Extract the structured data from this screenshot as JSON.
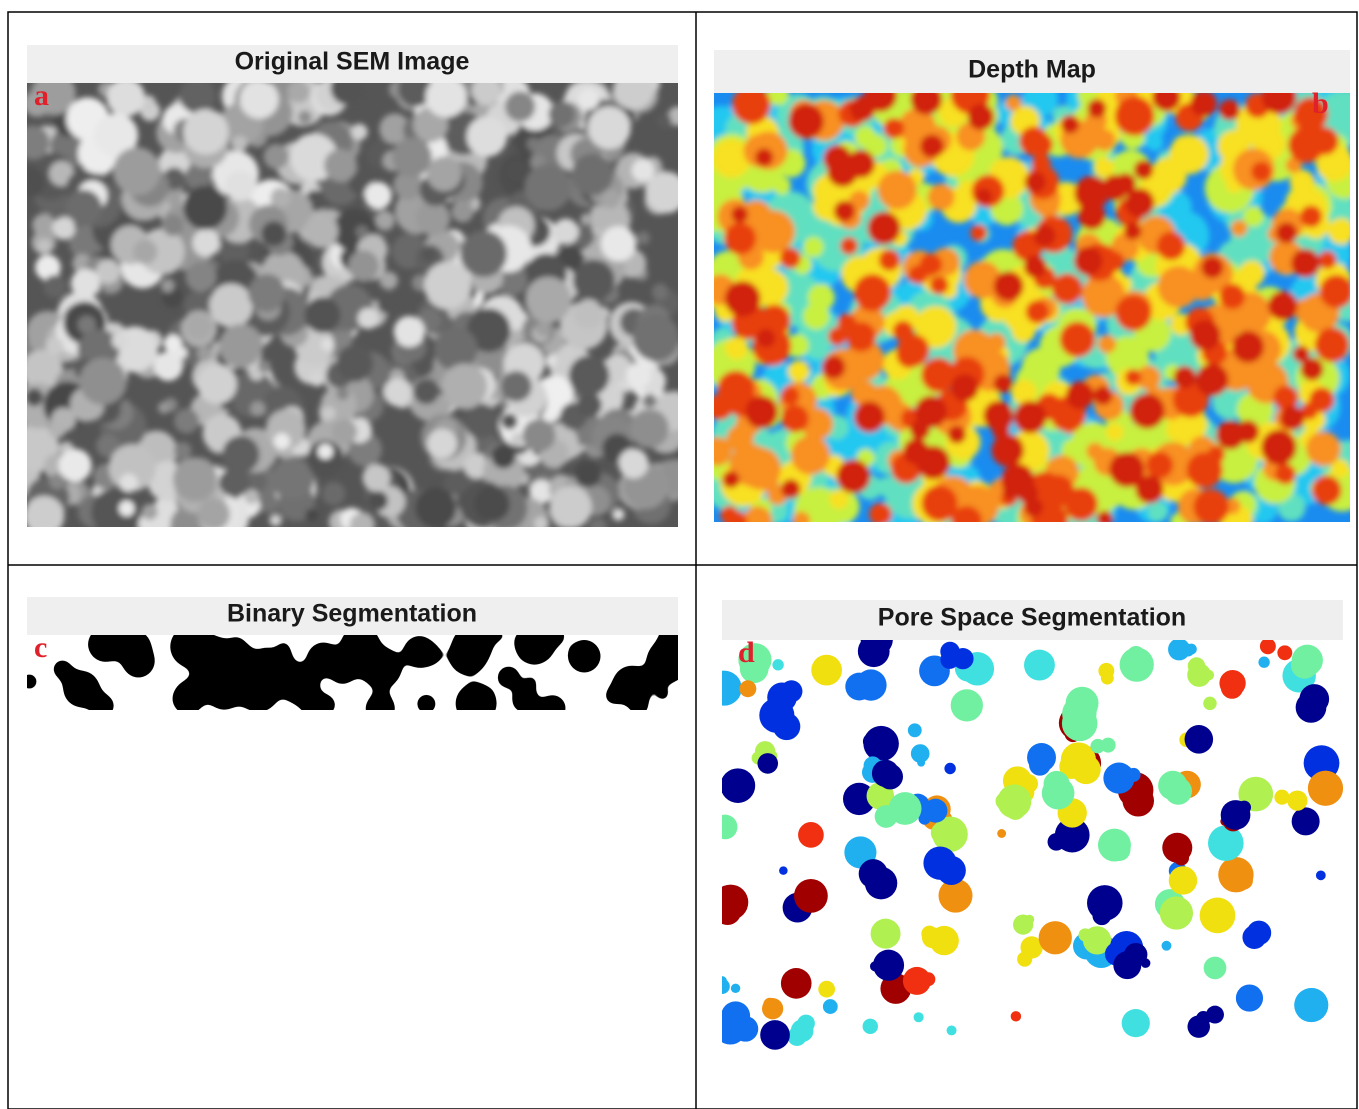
{
  "panels": [
    {
      "title": "Original SEM Image",
      "label": "a"
    },
    {
      "title": "Depth Map",
      "label": "b"
    },
    {
      "title": "Binary Segmentation",
      "label": "c"
    },
    {
      "title": "Pore Space Segmentation",
      "label": "d"
    }
  ]
}
